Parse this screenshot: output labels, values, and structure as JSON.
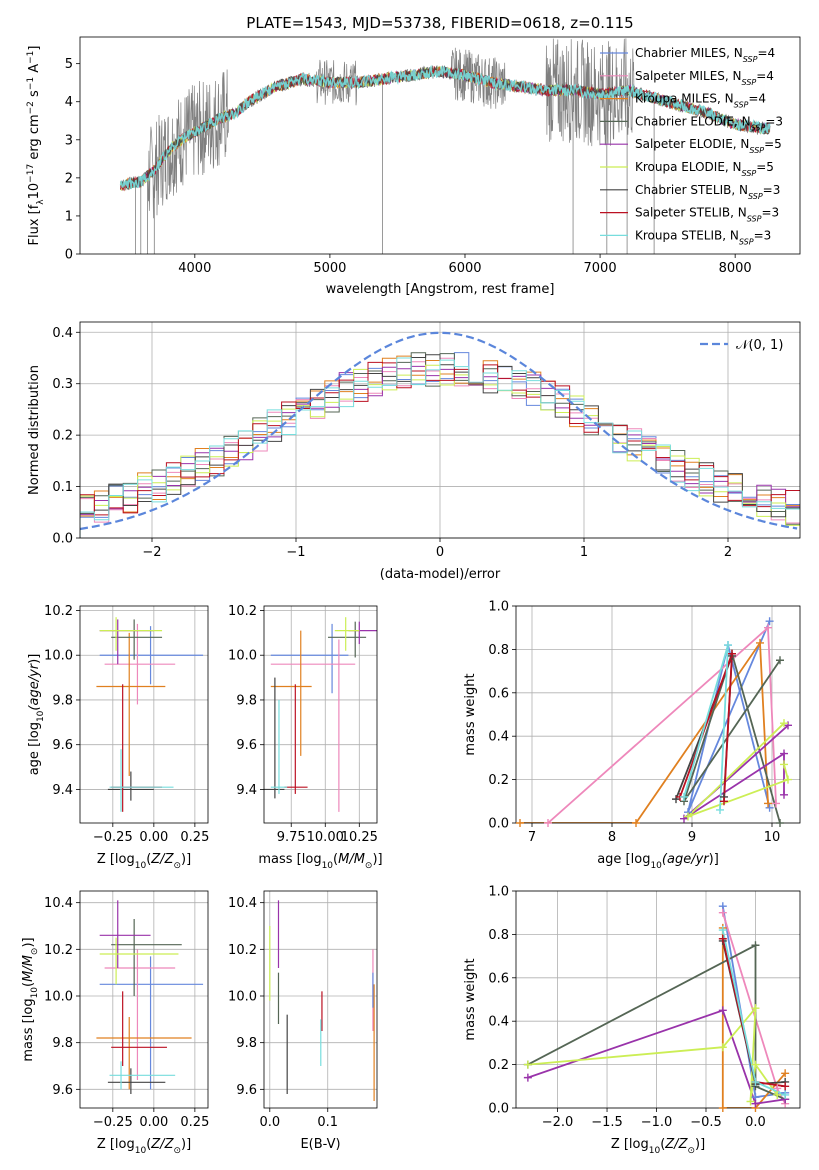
{
  "figure": {
    "title": "PLATE=1543, MJD=53738, FIBERID=0618, z=0.115"
  },
  "colors": {
    "chabrier_miles": "#6688dd",
    "salpeter_miles": "#ee88bb",
    "kroupa_miles": "#e08020",
    "chabrier_elodie": "#556655",
    "salpeter_elodie": "#9933aa",
    "kroupa_elodie": "#ccee55",
    "chabrier_stelib": "#444444",
    "salpeter_stelib": "#bb1122",
    "kroupa_stelib": "#77dddd",
    "data_spectrum": "#808080",
    "normal_curve": "#5b86db"
  },
  "chart_data": [
    {
      "id": "spectrum",
      "type": "line",
      "xlabel": "wavelength [Angstrom, rest frame]",
      "ylabel": "Flux [f",
      "ylabel_parts": [
        "Flux [f",
        "λ",
        "10",
        "−17",
        " erg cm",
        "−2",
        " s",
        "−1",
        " A",
        "−1",
        "]"
      ],
      "xlim": [
        3150,
        8480
      ],
      "ylim": [
        0,
        5.7
      ],
      "xticks": [
        4000,
        5000,
        6000,
        7000,
        8000
      ],
      "yticks": [
        0,
        1,
        2,
        3,
        4,
        5
      ],
      "legend_position": "upper-right",
      "legend": [
        {
          "name": "Chabrier MILES",
          "n": "4"
        },
        {
          "name": "Salpeter MILES",
          "n": "4"
        },
        {
          "name": "Kroupa MILES",
          "n": "4"
        },
        {
          "name": "Chabrier ELODIE",
          "n": "3"
        },
        {
          "name": "Salpeter ELODIE",
          "n": "5"
        },
        {
          "name": "Kroupa ELODIE",
          "n": "5"
        },
        {
          "name": "Chabrier STELIB",
          "n": "3"
        },
        {
          "name": "Salpeter STELIB",
          "n": "3"
        },
        {
          "name": "Kroupa STELIB",
          "n": "3"
        }
      ],
      "continuum": {
        "x": [
          3450,
          3600,
          3700,
          3800,
          3900,
          4000,
          4100,
          4200,
          4300,
          4400,
          4600,
          4800,
          5000,
          5200,
          5400,
          5600,
          5800,
          6000,
          6200,
          6400,
          6600,
          6800,
          7000,
          7200,
          7400,
          7600,
          7800,
          8000,
          8200,
          8260
        ],
        "y": [
          1.8,
          1.9,
          2.2,
          2.7,
          3.0,
          3.2,
          3.4,
          3.6,
          3.7,
          4.0,
          4.4,
          4.6,
          4.5,
          4.5,
          4.6,
          4.7,
          4.8,
          4.7,
          4.5,
          4.4,
          4.3,
          4.3,
          4.2,
          4.3,
          4.1,
          3.9,
          3.7,
          3.4,
          3.3,
          3.3
        ]
      },
      "noisy_range": [
        3650,
        4250
      ],
      "noisy_range_red": [
        6600,
        7250
      ],
      "dropouts": [
        3560,
        3600,
        3650,
        3700,
        5390,
        6800,
        7050,
        7200,
        7400
      ]
    },
    {
      "id": "residuals",
      "type": "line",
      "xlabel": "(data-model)/error",
      "ylabel": "Normed distribution",
      "xlim": [
        -2.5,
        2.5
      ],
      "ylim": [
        0,
        0.42
      ],
      "xticks": [
        -2,
        -1,
        0,
        1,
        2
      ],
      "yticks": [
        0.0,
        0.1,
        0.2,
        0.3,
        0.4
      ],
      "grid": true,
      "legend_position": "upper-right",
      "normal_label": "𝒩(0, 1)",
      "bin_edges_start": -2.5,
      "bin_width": 0.1
    },
    {
      "id": "age_vs_Z",
      "type": "errorbar",
      "xlabel": "Z [log",
      "ylabel": "age  [log",
      "xlim": [
        -0.45,
        0.33
      ],
      "ylim": [
        9.25,
        10.22
      ],
      "xticks": [
        -0.25,
        0.0,
        0.25
      ],
      "yticks": [
        9.4,
        9.6,
        9.8,
        10.0,
        10.2
      ],
      "grid": true,
      "points": [
        {
          "series": "chabrier_miles",
          "x": -0.02,
          "xe": [
            -0.33,
            0.3
          ],
          "y": 10.0,
          "ye": [
            9.87,
            10.13
          ]
        },
        {
          "series": "salpeter_miles",
          "x": -0.1,
          "xe": [
            -0.3,
            0.13
          ],
          "y": 9.96,
          "ye": [
            9.78,
            10.14
          ]
        },
        {
          "series": "kroupa_miles",
          "x": -0.15,
          "xe": [
            -0.35,
            0.07
          ],
          "y": 9.86,
          "ye": [
            9.46,
            10.1
          ]
        },
        {
          "series": "chabrier_elodie",
          "x": -0.12,
          "xe": [
            -0.26,
            0.05
          ],
          "y": 10.08,
          "ye": [
            9.98,
            10.16
          ]
        },
        {
          "series": "salpeter_elodie",
          "x": -0.22,
          "xe": [
            -0.33,
            0.0
          ],
          "y": 10.11,
          "ye": [
            9.96,
            10.16
          ]
        },
        {
          "series": "kroupa_elodie",
          "x": -0.23,
          "xe": [
            -0.33,
            0.05
          ],
          "y": 10.11,
          "ye": [
            10.02,
            10.17
          ]
        },
        {
          "series": "chabrier_stelib",
          "x": -0.14,
          "xe": [
            -0.28,
            0.0
          ],
          "y": 9.4,
          "ye": [
            9.35,
            9.48
          ]
        },
        {
          "series": "salpeter_stelib",
          "x": -0.19,
          "xe": [
            -0.26,
            0.05
          ],
          "y": 9.41,
          "ye": [
            9.3,
            9.87
          ]
        },
        {
          "series": "kroupa_stelib",
          "x": -0.2,
          "xe": [
            -0.27,
            0.12
          ],
          "y": 9.41,
          "ye": [
            9.3,
            9.58
          ]
        }
      ]
    },
    {
      "id": "age_vs_mass",
      "type": "errorbar",
      "xlabel": "mass [log",
      "ylabel": "",
      "xlim": [
        9.55,
        10.38
      ],
      "ylim": [
        9.25,
        10.22
      ],
      "xticks": [
        9.75,
        10.0,
        10.25
      ],
      "yticks": [
        9.4,
        9.6,
        9.8,
        10.0,
        10.2
      ],
      "grid": true,
      "points": [
        {
          "series": "chabrier_miles",
          "x": 10.05,
          "xe": [
            9.6,
            10.17
          ],
          "y": 10.0,
          "ye": [
            9.83,
            10.14
          ]
        },
        {
          "series": "salpeter_miles",
          "x": 10.1,
          "xe": [
            9.6,
            10.22
          ],
          "y": 9.96,
          "ye": [
            9.3,
            10.07
          ]
        },
        {
          "series": "kroupa_miles",
          "x": 9.82,
          "xe": [
            9.6,
            9.9
          ],
          "y": 9.86,
          "ye": [
            9.55,
            10.11
          ]
        },
        {
          "series": "chabrier_elodie",
          "x": 10.22,
          "xe": [
            10.02,
            10.3
          ],
          "y": 10.08,
          "ye": [
            9.99,
            10.15
          ]
        },
        {
          "series": "salpeter_elodie",
          "x": 10.25,
          "xe": [
            10.17,
            10.38
          ],
          "y": 10.11,
          "ye": [
            10.05,
            10.15
          ]
        },
        {
          "series": "kroupa_elodie",
          "x": 10.15,
          "xe": [
            10.07,
            10.25
          ],
          "y": 10.11,
          "ye": [
            10.02,
            10.17
          ]
        },
        {
          "series": "chabrier_stelib",
          "x": 9.63,
          "xe": [
            9.55,
            9.7
          ],
          "y": 9.4,
          "ye": [
            9.36,
            9.9
          ]
        },
        {
          "series": "salpeter_stelib",
          "x": 9.78,
          "xe": [
            9.7,
            9.87
          ],
          "y": 9.41,
          "ye": [
            9.38,
            9.87
          ]
        },
        {
          "series": "kroupa_stelib",
          "x": 9.66,
          "xe": [
            9.6,
            9.72
          ],
          "y": 9.41,
          "ye": [
            9.38,
            9.8
          ]
        }
      ]
    },
    {
      "id": "weight_vs_age",
      "type": "line",
      "xlabel": "age  [log",
      "ylabel": "mass weight",
      "xlim": [
        6.8,
        10.35
      ],
      "ylim": [
        0,
        1.0
      ],
      "xticks": [
        7,
        8,
        9,
        10
      ],
      "yticks": [
        0.0,
        0.2,
        0.4,
        0.6,
        0.8,
        1.0
      ],
      "grid": true,
      "series": [
        {
          "key": "chabrier_miles",
          "x": [
            9.97,
            8.95,
            9.45,
            9.97
          ],
          "y": [
            0.93,
            0.05,
            0.82,
            0.07
          ]
        },
        {
          "key": "salpeter_miles",
          "x": [
            7.2,
            9.95,
            10.05
          ],
          "y": [
            0.0,
            0.9,
            0.09
          ]
        },
        {
          "key": "kroupa_miles",
          "x": [
            6.85,
            8.3,
            9.85,
            9.95
          ],
          "y": [
            0.0,
            0.0,
            0.83,
            0.09
          ]
        },
        {
          "key": "chabrier_elodie",
          "x": [
            10.1,
            8.9,
            9.5,
            10.1
          ],
          "y": [
            0.75,
            0.1,
            0.78,
            0.0
          ]
        },
        {
          "key": "salpeter_elodie",
          "x": [
            10.2,
            8.9,
            10.15,
            10.15
          ],
          "y": [
            0.45,
            0.02,
            0.32,
            0.13
          ]
        },
        {
          "key": "kroupa_elodie",
          "x": [
            10.15,
            8.95,
            10.2,
            10.15
          ],
          "y": [
            0.46,
            0.03,
            0.2,
            0.27
          ]
        },
        {
          "key": "chabrier_stelib",
          "x": [
            8.8,
            9.5,
            9.4
          ],
          "y": [
            0.11,
            0.77,
            0.12
          ]
        },
        {
          "key": "salpeter_stelib",
          "x": [
            8.85,
            9.5,
            9.4
          ],
          "y": [
            0.12,
            0.78,
            0.1
          ]
        },
        {
          "key": "kroupa_stelib",
          "x": [
            8.9,
            9.45,
            9.35
          ],
          "y": [
            0.12,
            0.82,
            0.06
          ]
        }
      ]
    },
    {
      "id": "mass_vs_Z",
      "type": "errorbar",
      "xlabel": "Z [log",
      "ylabel": "mass [log",
      "xlim": [
        -0.45,
        0.33
      ],
      "ylim": [
        9.52,
        10.45
      ],
      "xticks": [
        -0.25,
        0.0,
        0.25
      ],
      "yticks": [
        9.6,
        9.8,
        10.0,
        10.2,
        10.4
      ],
      "grid": true,
      "points": [
        {
          "series": "chabrier_miles",
          "x": -0.02,
          "xe": [
            -0.33,
            0.3
          ],
          "y": 10.05,
          "ye": [
            9.6,
            10.17
          ]
        },
        {
          "series": "salpeter_miles",
          "x": -0.1,
          "xe": [
            -0.3,
            0.13
          ],
          "y": 10.12,
          "ye": [
            9.64,
            10.2
          ]
        },
        {
          "series": "kroupa_miles",
          "x": -0.15,
          "xe": [
            -0.35,
            0.23
          ],
          "y": 9.82,
          "ye": [
            9.6,
            9.91
          ]
        },
        {
          "series": "chabrier_elodie",
          "x": -0.12,
          "xe": [
            -0.26,
            0.17
          ],
          "y": 10.22,
          "ye": [
            10.0,
            10.33
          ]
        },
        {
          "series": "salpeter_elodie",
          "x": -0.22,
          "xe": [
            -0.33,
            -0.02
          ],
          "y": 10.26,
          "ye": [
            10.12,
            10.41
          ]
        },
        {
          "series": "kroupa_elodie",
          "x": -0.23,
          "xe": [
            -0.33,
            0.15
          ],
          "y": 10.18,
          "ye": [
            10.05,
            10.25
          ]
        },
        {
          "series": "chabrier_stelib",
          "x": -0.14,
          "xe": [
            -0.28,
            0.07
          ],
          "y": 9.63,
          "ye": [
            9.58,
            9.69
          ]
        },
        {
          "series": "salpeter_stelib",
          "x": -0.19,
          "xe": [
            -0.26,
            0.08
          ],
          "y": 9.78,
          "ye": [
            9.7,
            10.02
          ]
        },
        {
          "series": "kroupa_stelib",
          "x": -0.2,
          "xe": [
            -0.27,
            0.13
          ],
          "y": 9.66,
          "ye": [
            9.6,
            9.72
          ]
        }
      ]
    },
    {
      "id": "mass_vs_ebv",
      "type": "errorbar",
      "xlabel": "E(B-V)",
      "ylabel": "",
      "xlim": [
        -0.01,
        0.185
      ],
      "ylim": [
        9.52,
        10.45
      ],
      "xticks": [
        0.0,
        0.1
      ],
      "yticks": [
        9.6,
        9.8,
        10.0,
        10.2,
        10.4
      ],
      "grid": true,
      "points": [
        {
          "series": "kroupa_elodie",
          "x": 0.0,
          "y": 10.1,
          "ye": [
            9.98,
            10.3
          ]
        },
        {
          "series": "salpeter_elodie",
          "x": 0.015,
          "y": 10.26,
          "ye": [
            10.12,
            10.41
          ]
        },
        {
          "series": "chabrier_elodie",
          "x": 0.015,
          "y": 10.0,
          "ye": [
            9.88,
            10.1
          ]
        },
        {
          "series": "chabrier_stelib",
          "x": 0.03,
          "y": 9.75,
          "ye": [
            9.58,
            9.92
          ]
        },
        {
          "series": "salpeter_stelib",
          "x": 0.09,
          "y": 9.92,
          "ye": [
            9.85,
            10.02
          ]
        },
        {
          "series": "kroupa_stelib",
          "x": 0.088,
          "y": 9.78,
          "ye": [
            9.7,
            9.9
          ]
        },
        {
          "series": "salpeter_miles",
          "x": 0.178,
          "y": 10.0,
          "ye": [
            9.85,
            10.2
          ]
        },
        {
          "series": "kroupa_miles",
          "x": 0.18,
          "y": 9.8,
          "ye": [
            9.55,
            10.05
          ]
        },
        {
          "series": "chabrier_miles",
          "x": 0.178,
          "y": 10.05,
          "ye": [
            9.95,
            10.1
          ]
        }
      ]
    },
    {
      "id": "weight_vs_Z",
      "type": "line",
      "xlabel": "Z [log",
      "ylabel": "mass weight",
      "xlim": [
        -2.42,
        0.45
      ],
      "ylim": [
        0,
        1.0
      ],
      "xticks": [
        -2.0,
        -1.5,
        -1.0,
        -0.5,
        0.0
      ],
      "yticks": [
        0.0,
        0.2,
        0.4,
        0.6,
        0.8,
        1.0
      ],
      "grid": true,
      "series": [
        {
          "key": "chabrier_miles",
          "x": [
            -0.33,
            0.0,
            0.3
          ],
          "y": [
            0.93,
            0.05,
            0.07
          ]
        },
        {
          "key": "salpeter_miles",
          "x": [
            -0.33,
            0.22,
            0.3
          ],
          "y": [
            0.9,
            0.09,
            0.02
          ]
        },
        {
          "key": "kroupa_miles",
          "x": [
            -0.33,
            -0.33,
            0.0,
            0.3
          ],
          "y": [
            0.83,
            0.0,
            0.0,
            0.16
          ]
        },
        {
          "key": "chabrier_elodie",
          "x": [
            -2.3,
            0.0,
            0.0,
            0.3
          ],
          "y": [
            0.2,
            0.75,
            0.1,
            0.04
          ]
        },
        {
          "key": "salpeter_elodie",
          "x": [
            -2.3,
            -0.33,
            0.0,
            0.3
          ],
          "y": [
            0.14,
            0.45,
            0.02,
            0.04
          ]
        },
        {
          "key": "kroupa_elodie",
          "x": [
            -2.3,
            -0.33,
            0.0,
            -0.05,
            0.0,
            0.22
          ],
          "y": [
            0.2,
            0.28,
            0.46,
            0.03,
            0.2,
            0.06
          ]
        },
        {
          "key": "chabrier_stelib",
          "x": [
            -0.33,
            0.0,
            0.3
          ],
          "y": [
            0.77,
            0.11,
            0.12
          ]
        },
        {
          "key": "salpeter_stelib",
          "x": [
            -0.33,
            0.0,
            0.3
          ],
          "y": [
            0.78,
            0.12,
            0.1
          ]
        },
        {
          "key": "kroupa_stelib",
          "x": [
            -0.33,
            0.0,
            0.3
          ],
          "y": [
            0.82,
            0.12,
            0.06
          ]
        }
      ]
    }
  ],
  "labels": {
    "z_unit": "Z [log",
    "age_unit": "age  [log",
    "mass_unit": "mass [log"
  }
}
